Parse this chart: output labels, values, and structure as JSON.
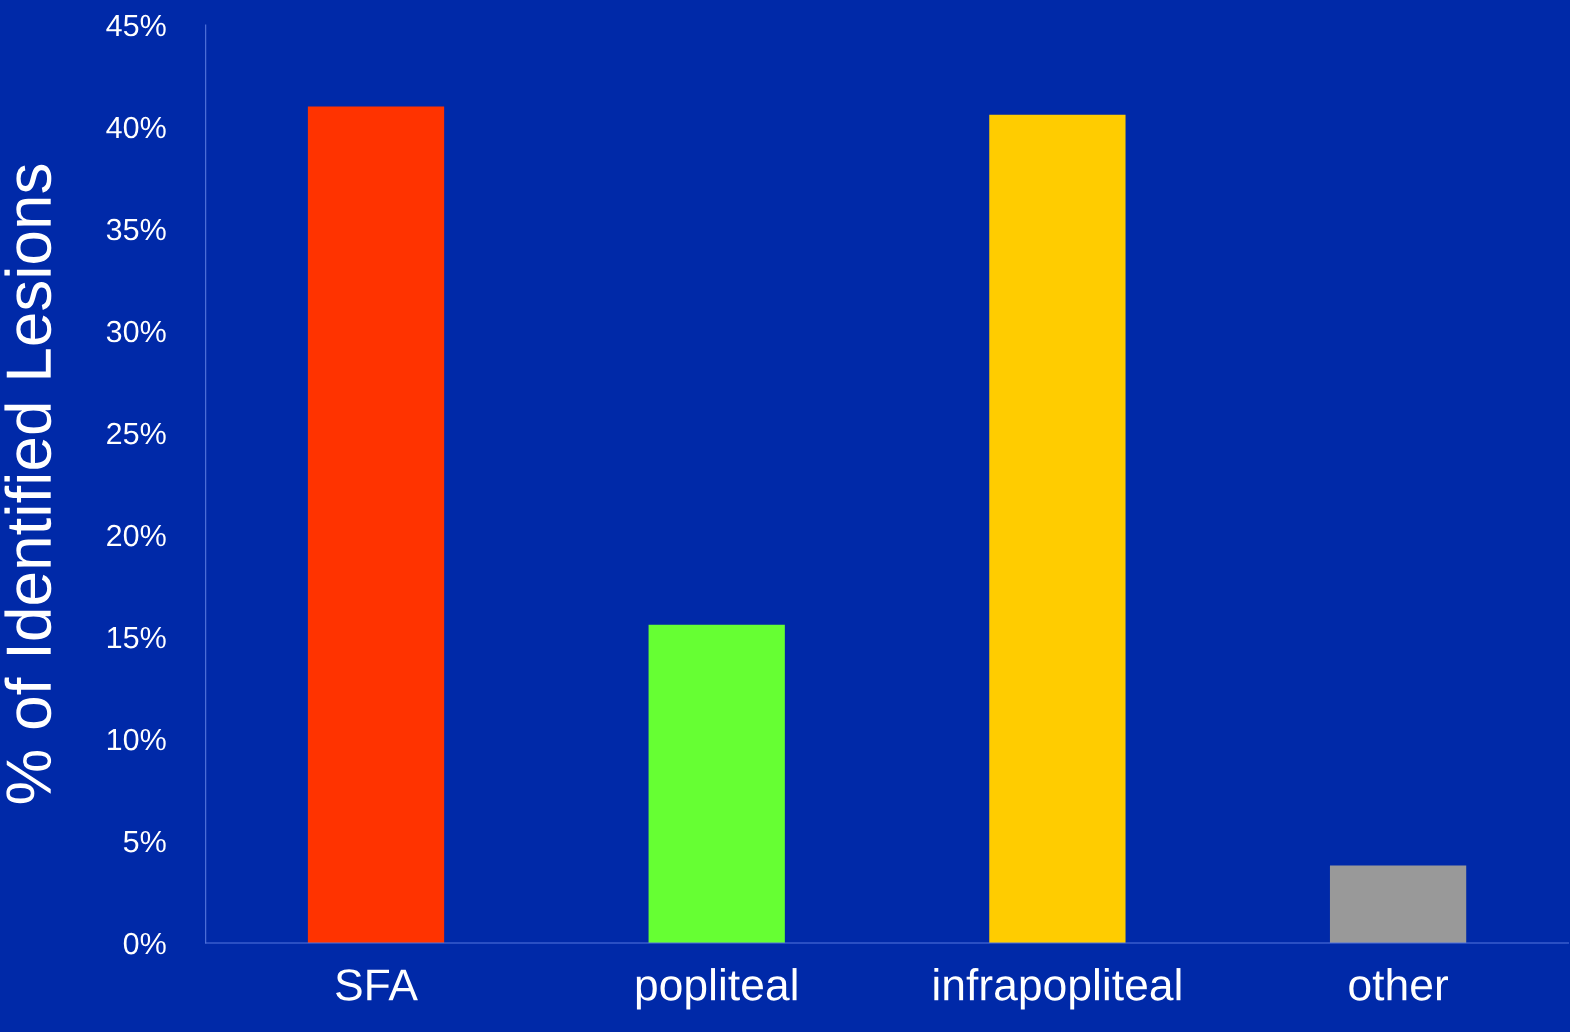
{
  "chart_data": {
    "type": "bar",
    "ylabel": "% of Identified Lesions",
    "categories": [
      "SFA",
      "popliteal",
      "infrapopliteal",
      "other"
    ],
    "values": [
      41,
      15.6,
      40.6,
      3.8
    ],
    "colors": [
      "#ff3300",
      "#66ff33",
      "#ffcc00",
      "#999999"
    ],
    "ylim": [
      0,
      45
    ],
    "yticks": [
      {
        "value": 0,
        "label": "0%"
      },
      {
        "value": 5,
        "label": "5%"
      },
      {
        "value": 10,
        "label": "10%"
      },
      {
        "value": 15,
        "label": "15%"
      },
      {
        "value": 20,
        "label": "20%"
      },
      {
        "value": 25,
        "label": "25%"
      },
      {
        "value": 30,
        "label": "30%"
      },
      {
        "value": 35,
        "label": "35%"
      },
      {
        "value": 40,
        "label": "40%"
      },
      {
        "value": 45,
        "label": "45%"
      }
    ],
    "grid": false,
    "legend": false
  }
}
